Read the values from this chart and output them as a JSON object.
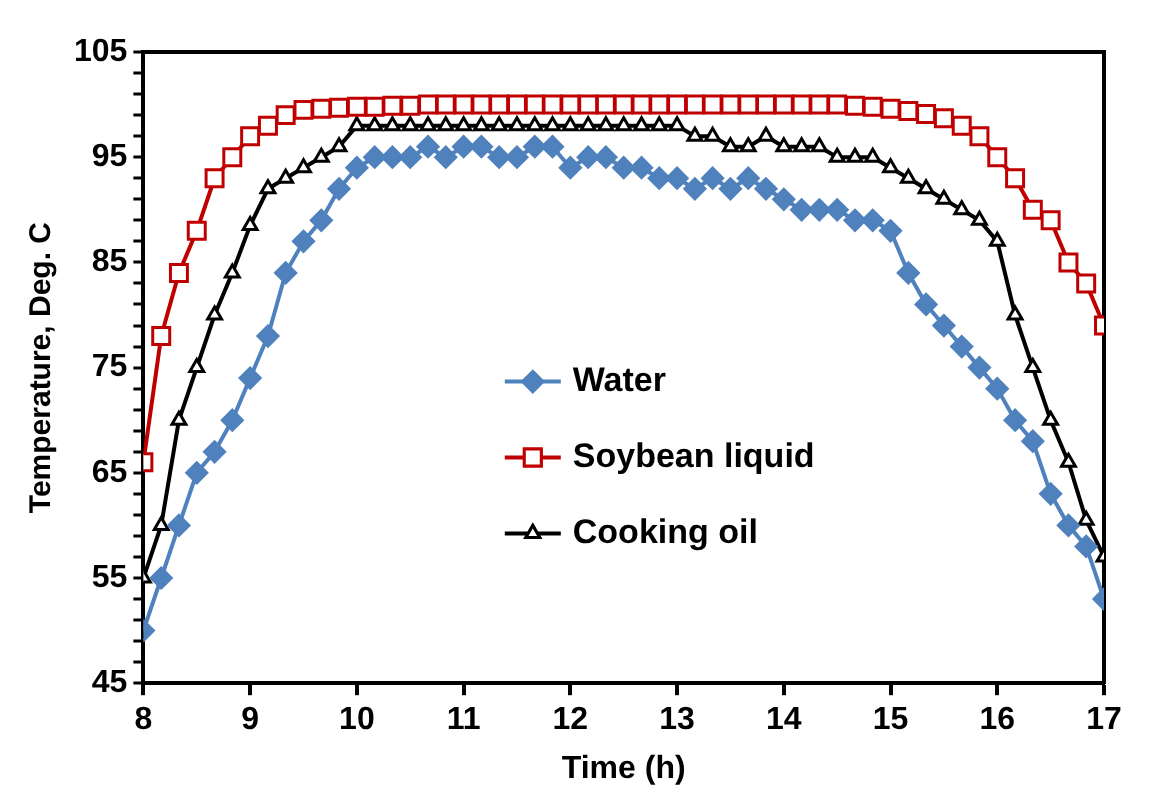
{
  "chart_data": {
    "type": "line",
    "xlabel": "Time (h)",
    "ylabel": "Temperature, Deg. C",
    "x": [
      8,
      8.167,
      8.333,
      8.5,
      8.667,
      8.833,
      9,
      9.167,
      9.333,
      9.5,
      9.667,
      9.833,
      10,
      10.167,
      10.333,
      10.5,
      10.667,
      10.833,
      11,
      11.167,
      11.333,
      11.5,
      11.667,
      11.833,
      12,
      12.167,
      12.333,
      12.5,
      12.667,
      12.833,
      13,
      13.167,
      13.333,
      13.5,
      13.667,
      13.833,
      14,
      14.167,
      14.333,
      14.5,
      14.667,
      14.833,
      15,
      15.167,
      15.333,
      15.5,
      15.667,
      15.833,
      16,
      16.167,
      16.333,
      16.5,
      16.667,
      16.833,
      17
    ],
    "series": [
      {
        "name": "Water",
        "color": "#4f81bd",
        "marker": "diamond",
        "values": [
          50,
          55,
          60,
          65,
          67,
          70,
          74,
          78,
          84,
          87,
          89,
          92,
          94,
          95,
          95,
          95,
          96,
          95,
          96,
          96,
          95,
          95,
          96,
          96,
          94,
          95,
          95,
          94,
          94,
          93,
          93,
          92,
          93,
          92,
          93,
          92,
          91,
          90,
          90,
          90,
          89,
          89,
          88,
          84,
          81,
          79,
          77,
          75,
          73,
          70,
          68,
          63,
          60,
          58,
          53
        ]
      },
      {
        "name": "Soybean liquid",
        "color": "#c00000",
        "marker": "square",
        "values": [
          66,
          78,
          84,
          88,
          93,
          95,
          97,
          98,
          99,
          99.5,
          99.6,
          99.7,
          99.8,
          99.8,
          99.9,
          99.9,
          100,
          100,
          100,
          100,
          100,
          100,
          100,
          100,
          100,
          100,
          100,
          100,
          100,
          100,
          100,
          100,
          100,
          100,
          100,
          100,
          100,
          100,
          100,
          100,
          99.9,
          99.8,
          99.6,
          99.4,
          99.1,
          98.7,
          98,
          97,
          95,
          93,
          90,
          89,
          85,
          83,
          79
        ]
      },
      {
        "name": "Cooking oil",
        "color": "#000000",
        "marker": "triangle",
        "values": [
          55,
          60,
          70,
          75,
          80,
          84,
          88.5,
          92,
          93,
          94,
          95,
          96,
          98,
          98,
          98,
          98,
          98,
          98,
          98,
          98,
          98,
          98,
          98,
          98,
          98,
          98,
          98,
          98,
          98,
          98,
          98,
          97,
          97,
          96,
          96,
          97,
          96,
          96,
          96,
          95,
          95,
          95,
          94,
          93,
          92,
          91,
          90,
          89,
          87,
          80,
          75,
          70,
          66,
          60.5,
          57
        ]
      }
    ],
    "xlim": [
      8,
      17
    ],
    "xticks": [
      8,
      9,
      10,
      11,
      12,
      13,
      14,
      15,
      16,
      17
    ],
    "ylim": [
      45,
      105
    ],
    "yticks": [
      45,
      {
        "value": 47,
        "label": null
      },
      {
        "value": 49,
        "label": null
      },
      {
        "value": 51,
        "label": null
      },
      {
        "value": 53,
        "label": null
      },
      55,
      {
        "value": 57,
        "label": null
      },
      {
        "value": 59,
        "label": null
      },
      {
        "value": 61,
        "label": null
      },
      {
        "value": 63,
        "label": null
      },
      65,
      {
        "value": 67,
        "label": null
      },
      {
        "value": 69,
        "label": null
      },
      {
        "value": 71,
        "label": null
      },
      {
        "value": 73,
        "label": null
      },
      75,
      {
        "value": 77,
        "label": null
      },
      {
        "value": 79,
        "label": null
      },
      {
        "value": 81,
        "label": null
      },
      {
        "value": 83,
        "label": null
      },
      85,
      {
        "value": 87,
        "label": null
      },
      {
        "value": 89,
        "label": null
      },
      {
        "value": 91,
        "label": null
      },
      {
        "value": 93,
        "label": null
      },
      95,
      {
        "value": 97,
        "label": null
      },
      {
        "value": 99,
        "label": null
      },
      {
        "value": 101,
        "label": null
      },
      {
        "value": 103,
        "label": null
      },
      105
    ],
    "grid": false,
    "legend": "center",
    "line_style": "solid"
  }
}
